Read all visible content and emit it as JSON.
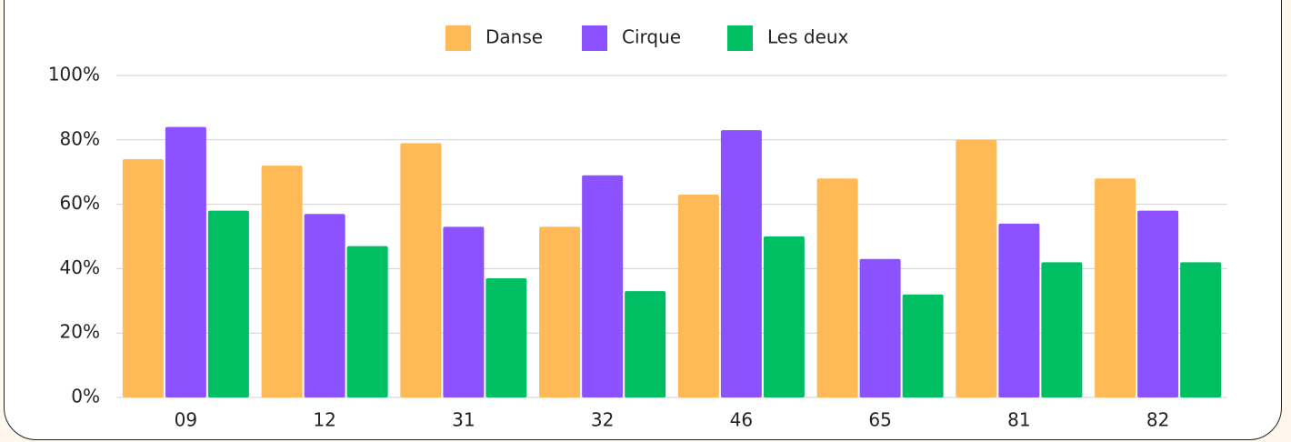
{
  "chart_data": {
    "type": "bar",
    "categories": [
      "09",
      "12",
      "31",
      "32",
      "46",
      "65",
      "81",
      "82"
    ],
    "series": [
      {
        "name": "Danse",
        "color": "#ffb957",
        "values": [
          74,
          72,
          79,
          53,
          63,
          68,
          80,
          68
        ]
      },
      {
        "name": "Cirque",
        "color": "#8c52ff",
        "values": [
          84,
          57,
          53,
          69,
          83,
          43,
          54,
          58
        ]
      },
      {
        "name": "Les deux",
        "color": "#00bf63",
        "values": [
          58,
          47,
          37,
          33,
          50,
          32,
          42,
          42
        ]
      }
    ],
    "ylim": [
      0,
      100
    ],
    "yticks": [
      {
        "value": 0,
        "label": "0%"
      },
      {
        "value": 20,
        "label": "20%"
      },
      {
        "value": 40,
        "label": "40%"
      },
      {
        "value": 60,
        "label": "60%"
      },
      {
        "value": 80,
        "label": "80%"
      },
      {
        "value": 100,
        "label": "100%"
      }
    ],
    "grid": true,
    "legend": "top"
  }
}
